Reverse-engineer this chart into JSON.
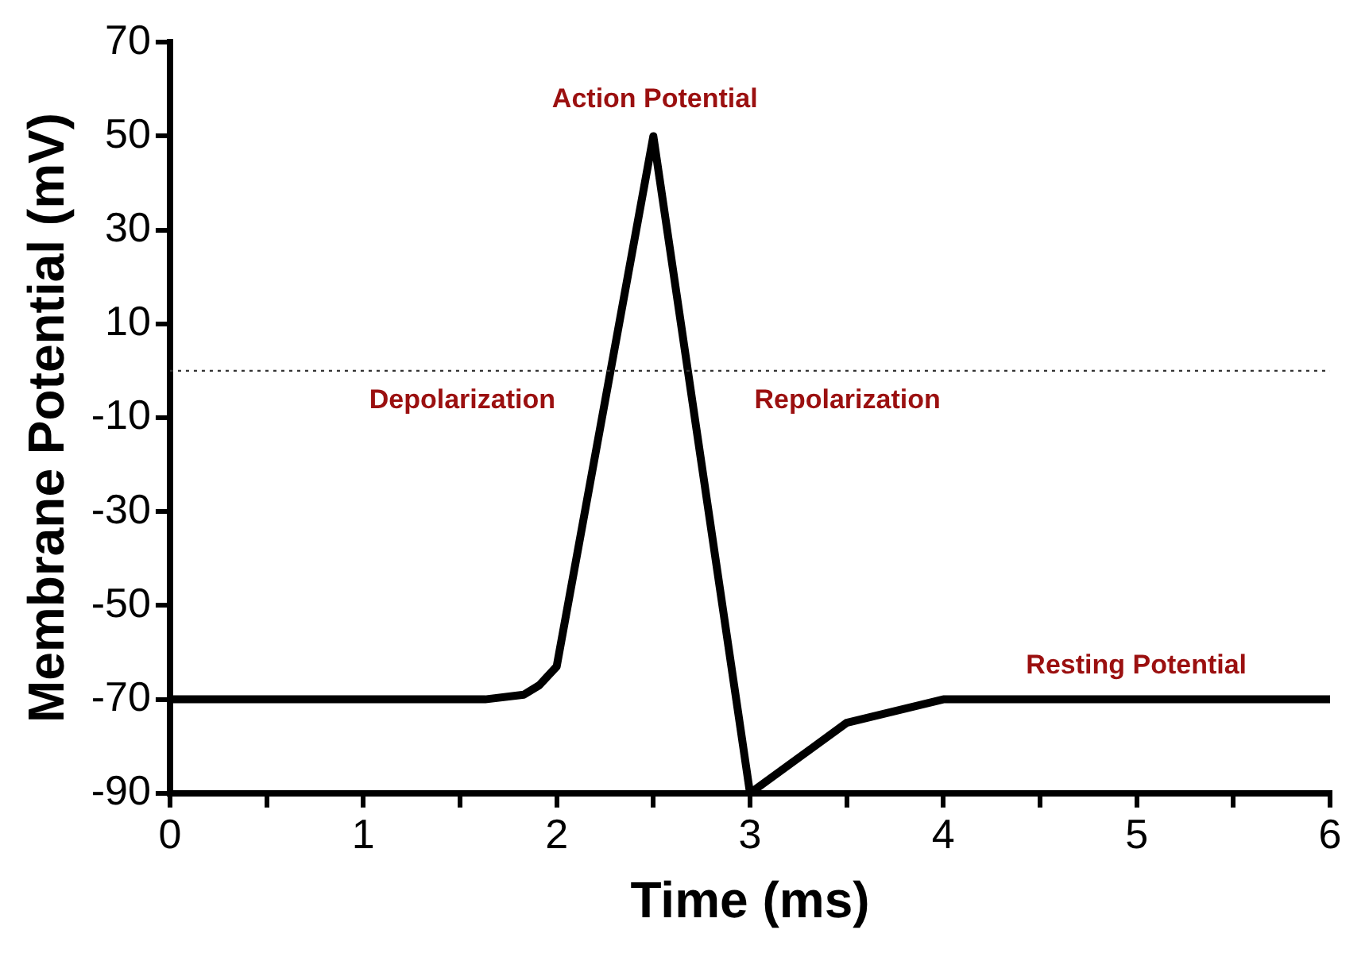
{
  "chart_data": {
    "type": "line",
    "xlabel": "Time (ms)",
    "ylabel": "Membrane Potential (mV)",
    "x": [
      0,
      1.63,
      1.83,
      1.91,
      2,
      2.5,
      3,
      3.5,
      4,
      6
    ],
    "series": [
      {
        "color": "#000000",
        "values": [
          -70,
          -70,
          -69,
          -67,
          -63,
          50,
          -90,
          -75,
          -70,
          -70
        ]
      }
    ],
    "xlim": [
      0,
      6
    ],
    "xticks": [
      0,
      {
        "value": 0.5,
        "label": null
      },
      1,
      {
        "value": 1.5,
        "label": null
      },
      2,
      {
        "value": 2.5,
        "label": null
      },
      3,
      {
        "value": 3.5,
        "label": null
      },
      4,
      {
        "value": 4.5,
        "label": null
      },
      5,
      {
        "value": 5.5,
        "label": null
      },
      6
    ],
    "ylim": [
      -90,
      70
    ],
    "yticks": [
      -90,
      -70,
      -50,
      -30,
      -10,
      10,
      30,
      50,
      70
    ],
    "ref_lines": [
      {
        "axis": "y",
        "value": 0,
        "color": "#333333",
        "line_style": "dotted"
      }
    ],
    "annotations": [
      "Action Potential",
      "Depolarization",
      "Repolarization",
      "Resting Potential"
    ],
    "grid": false,
    "legend": false,
    "marker": "none",
    "line_style": "solid"
  }
}
